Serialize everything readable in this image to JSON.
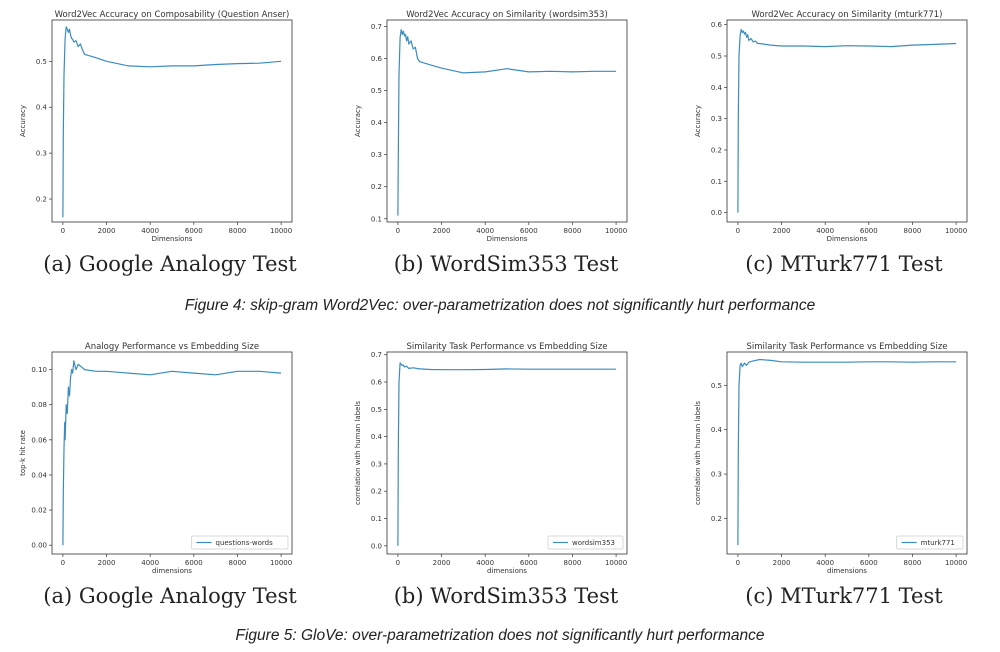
{
  "figures": [
    {
      "caption": "Figure 4: skip-gram Word2Vec: over-parametrization does not significantly hurt performance",
      "panels": [
        {
          "subcaption": "(a) Google Analogy Test"
        },
        {
          "subcaption": "(b) WordSim353 Test"
        },
        {
          "subcaption": "(c) MTurk771 Test"
        }
      ]
    },
    {
      "caption": "Figure 5: GloVe: over-parametrization does not significantly hurt performance",
      "panels": [
        {
          "subcaption": "(a) Google Analogy Test"
        },
        {
          "subcaption": "(b) WordSim353 Test"
        },
        {
          "subcaption": "(c) MTurk771 Test"
        }
      ]
    }
  ],
  "chart_data": [
    {
      "type": "line",
      "title": "Word2Vec Accuracy on Composability (Question Anser)",
      "xlabel": "Dimensions",
      "ylabel": "Accuracy",
      "xlim": [
        -500,
        10500
      ],
      "ylim": [
        0.15,
        0.59
      ],
      "xticks": [
        0,
        2000,
        4000,
        6000,
        8000,
        10000
      ],
      "yticks": [
        0.2,
        0.3,
        0.4,
        0.5
      ],
      "ytick_labels": [
        "0.2",
        "0.3",
        "0.4",
        "0.5"
      ],
      "series": [
        {
          "color": "#3b8bc0",
          "x": [
            1,
            20,
            50,
            100,
            150,
            200,
            250,
            300,
            350,
            400,
            450,
            500,
            600,
            700,
            800,
            900,
            1000,
            1500,
            2000,
            3000,
            4000,
            5000,
            6000,
            7000,
            8000,
            9000,
            10000
          ],
          "y": [
            0.16,
            0.34,
            0.47,
            0.55,
            0.575,
            0.57,
            0.563,
            0.57,
            0.558,
            0.55,
            0.548,
            0.542,
            0.545,
            0.532,
            0.538,
            0.525,
            0.515,
            0.508,
            0.5,
            0.49,
            0.488,
            0.49,
            0.49,
            0.493,
            0.495,
            0.496,
            0.5
          ]
        }
      ]
    },
    {
      "type": "line",
      "title": "Word2Vec Accuracy on Similarity (wordsim353)",
      "xlabel": "Dimensions",
      "ylabel": "Accuracy",
      "xlim": [
        -500,
        10500
      ],
      "ylim": [
        0.09,
        0.72
      ],
      "xticks": [
        0,
        2000,
        4000,
        6000,
        8000,
        10000
      ],
      "yticks": [
        0.1,
        0.2,
        0.3,
        0.4,
        0.5,
        0.6,
        0.7
      ],
      "ytick_labels": [
        "0.1",
        "0.2",
        "0.3",
        "0.4",
        "0.5",
        "0.6",
        "0.7"
      ],
      "series": [
        {
          "color": "#3b8bc0",
          "x": [
            1,
            20,
            50,
            100,
            150,
            200,
            250,
            300,
            350,
            400,
            450,
            500,
            600,
            700,
            800,
            900,
            1000,
            1500,
            2000,
            3000,
            4000,
            5000,
            6000,
            7000,
            8000,
            9000,
            10000
          ],
          "y": [
            0.11,
            0.3,
            0.55,
            0.665,
            0.69,
            0.675,
            0.685,
            0.67,
            0.675,
            0.655,
            0.668,
            0.645,
            0.655,
            0.63,
            0.635,
            0.6,
            0.59,
            0.58,
            0.57,
            0.555,
            0.558,
            0.568,
            0.558,
            0.56,
            0.558,
            0.56,
            0.56
          ]
        }
      ]
    },
    {
      "type": "line",
      "title": "Word2Vec Accuracy on Similarity (mturk771)",
      "xlabel": "Dimensions",
      "ylabel": "Accuracy",
      "xlim": [
        -500,
        10500
      ],
      "ylim": [
        -0.03,
        0.615
      ],
      "xticks": [
        0,
        2000,
        4000,
        6000,
        8000,
        10000
      ],
      "yticks": [
        0.0,
        0.1,
        0.2,
        0.3,
        0.4,
        0.5,
        0.6
      ],
      "ytick_labels": [
        "0.0",
        "0.1",
        "0.2",
        "0.3",
        "0.4",
        "0.5",
        "0.6"
      ],
      "series": [
        {
          "color": "#3b8bc0",
          "x": [
            1,
            20,
            50,
            100,
            150,
            200,
            250,
            300,
            350,
            400,
            450,
            500,
            600,
            700,
            800,
            900,
            1000,
            1500,
            2000,
            3000,
            4000,
            5000,
            6000,
            7000,
            8000,
            9000,
            10000
          ],
          "y": [
            0.0,
            0.3,
            0.5,
            0.565,
            0.585,
            0.575,
            0.58,
            0.57,
            0.575,
            0.56,
            0.568,
            0.55,
            0.556,
            0.545,
            0.548,
            0.54,
            0.54,
            0.535,
            0.532,
            0.532,
            0.53,
            0.533,
            0.532,
            0.53,
            0.535,
            0.537,
            0.54
          ]
        }
      ]
    },
    {
      "type": "line",
      "title": "Analogy Performance vs Embedding Size",
      "xlabel": "dimensions",
      "ylabel": "top-k hit rate",
      "xlim": [
        -500,
        10500
      ],
      "ylim": [
        -0.005,
        0.11
      ],
      "xticks": [
        0,
        2000,
        4000,
        6000,
        8000,
        10000
      ],
      "yticks": [
        0.0,
        0.02,
        0.04,
        0.06,
        0.08,
        0.1
      ],
      "ytick_labels": [
        "0.00",
        "0.02",
        "0.04",
        "0.06",
        "0.08",
        "0.10"
      ],
      "legend": {
        "position": "bottom-right",
        "label": "questions-words"
      },
      "series": [
        {
          "name": "questions-words",
          "color": "#3b8bc0",
          "x": [
            1,
            20,
            50,
            80,
            100,
            150,
            200,
            250,
            300,
            350,
            400,
            450,
            500,
            600,
            700,
            800,
            900,
            1000,
            1500,
            2000,
            3000,
            4000,
            5000,
            6000,
            7000,
            8000,
            9000,
            10000
          ],
          "y": [
            0.0,
            0.03,
            0.055,
            0.07,
            0.06,
            0.08,
            0.075,
            0.09,
            0.085,
            0.095,
            0.1,
            0.098,
            0.105,
            0.1,
            0.103,
            0.102,
            0.101,
            0.1,
            0.099,
            0.099,
            0.098,
            0.097,
            0.099,
            0.098,
            0.097,
            0.099,
            0.099,
            0.098
          ]
        }
      ]
    },
    {
      "type": "line",
      "title": "Similarity Task Performance vs Embedding Size",
      "xlabel": "dimensions",
      "ylabel": "correlation with human labels",
      "xlim": [
        -500,
        10500
      ],
      "ylim": [
        -0.03,
        0.71
      ],
      "xticks": [
        0,
        2000,
        4000,
        6000,
        8000,
        10000
      ],
      "yticks": [
        0.0,
        0.1,
        0.2,
        0.3,
        0.4,
        0.5,
        0.6,
        0.7
      ],
      "ytick_labels": [
        "0.0",
        "0.1",
        "0.2",
        "0.3",
        "0.4",
        "0.5",
        "0.6",
        "0.7"
      ],
      "legend": {
        "position": "bottom-right",
        "label": "wordsim353"
      },
      "series": [
        {
          "name": "wordsim353",
          "color": "#3b8bc0",
          "x": [
            1,
            20,
            50,
            100,
            150,
            200,
            250,
            300,
            400,
            500,
            700,
            1000,
            1500,
            2000,
            3000,
            4000,
            5000,
            6000,
            7000,
            8000,
            9000,
            10000
          ],
          "y": [
            0.0,
            0.35,
            0.6,
            0.67,
            0.665,
            0.66,
            0.662,
            0.655,
            0.658,
            0.65,
            0.652,
            0.648,
            0.646,
            0.645,
            0.645,
            0.646,
            0.648,
            0.647,
            0.647,
            0.647,
            0.647,
            0.647
          ]
        }
      ]
    },
    {
      "type": "line",
      "title": "Similarity Task Performance vs Embedding Size",
      "xlabel": "dimensions",
      "ylabel": "correlation with human labels",
      "xlim": [
        -500,
        10500
      ],
      "ylim": [
        0.12,
        0.575
      ],
      "xticks": [
        0,
        2000,
        4000,
        6000,
        8000,
        10000
      ],
      "yticks": [
        0.2,
        0.3,
        0.4,
        0.5
      ],
      "ytick_labels": [
        "0.2",
        "0.3",
        "0.4",
        "0.5"
      ],
      "legend": {
        "position": "bottom-right",
        "label": "mturk771"
      },
      "series": [
        {
          "name": "mturk771",
          "color": "#3b8bc0",
          "x": [
            1,
            20,
            50,
            100,
            150,
            200,
            300,
            400,
            500,
            700,
            1000,
            1500,
            2000,
            3000,
            4000,
            5000,
            6000,
            7000,
            8000,
            9000,
            10000
          ],
          "y": [
            0.14,
            0.35,
            0.5,
            0.545,
            0.55,
            0.542,
            0.55,
            0.545,
            0.552,
            0.555,
            0.558,
            0.556,
            0.553,
            0.552,
            0.552,
            0.552,
            0.553,
            0.553,
            0.552,
            0.553,
            0.553
          ]
        }
      ]
    }
  ]
}
